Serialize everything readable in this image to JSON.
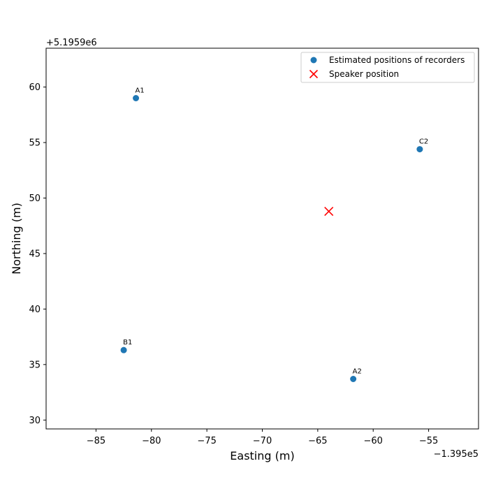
{
  "chart_data": {
    "type": "scatter",
    "title": "",
    "xlabel": "Easting (m)",
    "ylabel": "Northing (m)",
    "x_offset_text": "−1.395e5",
    "y_offset_text": "+5.1959e6",
    "xlim": [
      -89.5,
      -50.5
    ],
    "ylim": [
      29.2,
      63.5
    ],
    "xticks": [
      -85,
      -80,
      -75,
      -70,
      -65,
      -60,
      -55
    ],
    "yticks": [
      30,
      35,
      40,
      45,
      50,
      55,
      60
    ],
    "xtick_labels": [
      "−85",
      "−80",
      "−75",
      "−70",
      "−65",
      "−60",
      "−55"
    ],
    "ytick_labels": [
      "30",
      "35",
      "40",
      "45",
      "50",
      "55",
      "60"
    ],
    "grid": false,
    "legend_position": "top-right",
    "series": [
      {
        "name": "Estimated positions of recorders",
        "marker": "circle",
        "color": "#1f77b4",
        "points": [
          {
            "label": "A1",
            "x": -81.4,
            "y": 59.0
          },
          {
            "label": "C2",
            "x": -55.8,
            "y": 54.4
          },
          {
            "label": "B1",
            "x": -82.5,
            "y": 36.3
          },
          {
            "label": "A2",
            "x": -61.8,
            "y": 33.7
          }
        ]
      },
      {
        "name": "Speaker position",
        "marker": "x",
        "color": "#ff0000",
        "points": [
          {
            "label": "",
            "x": -64.0,
            "y": 48.8
          }
        ]
      }
    ]
  }
}
